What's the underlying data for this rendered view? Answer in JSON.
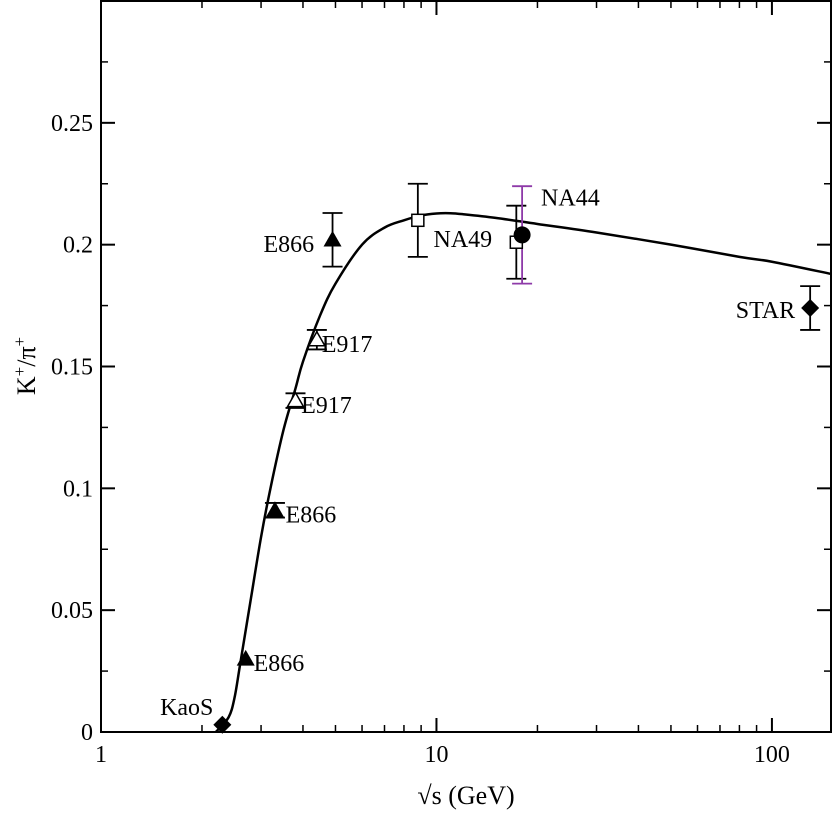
{
  "chart_data": {
    "type": "scatter",
    "xscale": "log",
    "xlim": [
      1,
      150
    ],
    "ylim": [
      0,
      0.3
    ],
    "xlabel": "√s (GeV)",
    "ylabel_base": "K",
    "ylabel_sup1": "+",
    "ylabel_mid": "/π",
    "ylabel_sup2": "+",
    "x_ticks": [
      1,
      10,
      100
    ],
    "x_tick_labels": [
      "1",
      "10",
      "100"
    ],
    "y_ticks": [
      0,
      0.05,
      0.1,
      0.15,
      0.2,
      0.25
    ],
    "y_tick_labels": [
      "0",
      "0.05",
      "0.1",
      "0.15",
      "0.2",
      "0.25"
    ],
    "grid": false,
    "colors": {
      "axis": "#000000",
      "curve": "#000000",
      "na44_error": "#8e3aa8"
    },
    "curve": {
      "x": [
        2.2,
        2.4,
        2.5,
        2.6,
        2.8,
        3.0,
        3.2,
        3.5,
        3.8,
        4.0,
        4.5,
        5.0,
        6.0,
        7.0,
        8.0,
        9.0,
        10.0,
        11.0,
        12.0,
        15.0,
        20.0,
        30.0,
        50.0,
        80.0,
        100.0,
        150.0
      ],
      "y": [
        0.0,
        0.006,
        0.014,
        0.028,
        0.055,
        0.08,
        0.1,
        0.124,
        0.141,
        0.152,
        0.171,
        0.184,
        0.2,
        0.207,
        0.21,
        0.212,
        0.2128,
        0.2129,
        0.2125,
        0.211,
        0.2085,
        0.205,
        0.2,
        0.195,
        0.193,
        0.188
      ]
    },
    "series": [
      {
        "marker": "diamond-filled",
        "points": [
          {
            "x": 2.3,
            "y": 0.003,
            "err": 0
          },
          {
            "x": 130,
            "y": 0.174,
            "err": 0.009
          }
        ]
      },
      {
        "marker": "triangle-filled",
        "points": [
          {
            "x": 2.7,
            "y": 0.03,
            "err": 0
          },
          {
            "x": 3.3,
            "y": 0.091,
            "err": 0.003
          },
          {
            "x": 4.9,
            "y": 0.202,
            "err": 0.011
          }
        ]
      },
      {
        "marker": "triangle-open",
        "points": [
          {
            "x": 3.8,
            "y": 0.136,
            "err": 0.003
          },
          {
            "x": 4.4,
            "y": 0.161,
            "err": 0.004
          }
        ]
      },
      {
        "marker": "square-open",
        "points": [
          {
            "x": 8.8,
            "y": 0.21,
            "err": 0.015
          },
          {
            "x": 17.3,
            "y": 0.201,
            "err": 0.015
          }
        ]
      },
      {
        "marker": "circle-filled",
        "error_color": "#8e3aa8",
        "points": [
          {
            "x": 18.0,
            "y": 0.204,
            "err": 0.02
          }
        ]
      }
    ],
    "annotations": [
      {
        "text": "KaoS",
        "x": 1.5,
        "y": 0.007
      },
      {
        "text": "E866",
        "x": 2.85,
        "y": 0.025
      },
      {
        "text": "E866",
        "x": 3.55,
        "y": 0.086
      },
      {
        "text": "E917",
        "x": 3.95,
        "y": 0.131
      },
      {
        "text": "E917",
        "x": 4.55,
        "y": 0.156
      },
      {
        "text": "E866",
        "x": 3.05,
        "y": 0.197
      },
      {
        "text": "NA49",
        "x": 9.8,
        "y": 0.199
      },
      {
        "text": "NA44",
        "x": 20.5,
        "y": 0.216
      },
      {
        "text": "STAR",
        "x": 78,
        "y": 0.17
      }
    ]
  }
}
